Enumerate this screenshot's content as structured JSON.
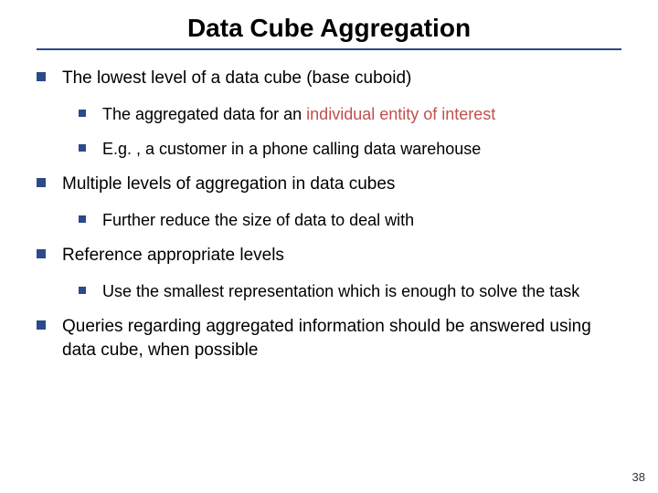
{
  "title": "Data Cube Aggregation",
  "divider_color": "#2a4a8a",
  "bullet_color": "#2a4a8a",
  "highlight_color": "#c0504d",
  "bullets": {
    "b1": "The lowest level of a data cube (base cuboid)",
    "b1a_pre": "The aggregated data for an ",
    "b1a_hl": "individual entity of interest",
    "b1b": "E.g. , a customer in a phone calling data warehouse",
    "b2": "Multiple levels of aggregation in data cubes",
    "b2a": "Further reduce the size of data to deal with",
    "b3": "Reference appropriate levels",
    "b3a": "Use the smallest representation which is enough to solve the task",
    "b4": "Queries regarding aggregated information should be answered using data cube, when possible"
  },
  "page_number": "38"
}
